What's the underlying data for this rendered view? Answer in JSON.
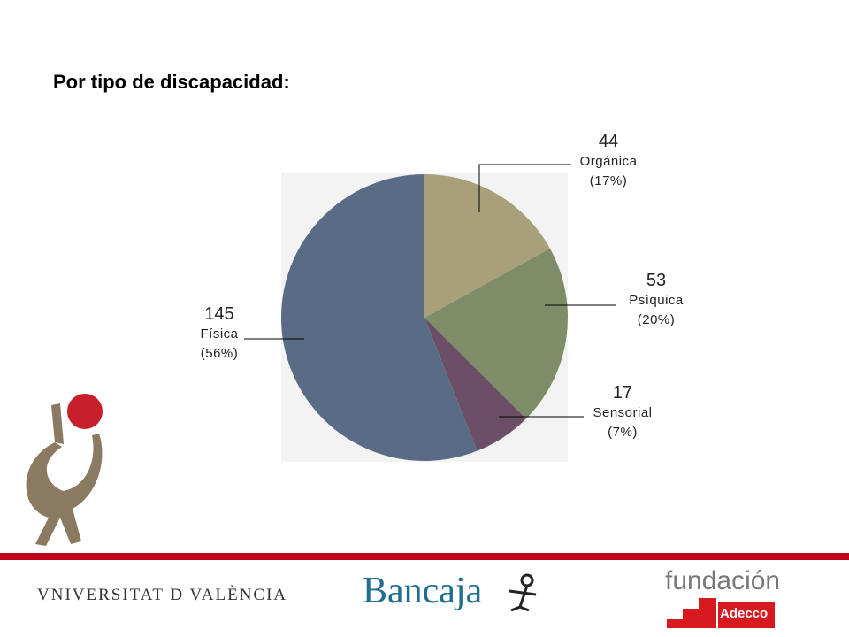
{
  "page": {
    "title": "Por tipo de discapacidad:"
  },
  "chart_data": {
    "type": "pie",
    "title": "",
    "slices": [
      {
        "name": "Orgánica",
        "value": 44,
        "percent_label": "(17%)",
        "color": "#a8a07a"
      },
      {
        "name": "Psíquica",
        "value": 53,
        "percent_label": "(20%)",
        "color": "#7f8c68"
      },
      {
        "name": "Sensorial",
        "value": 17,
        "percent_label": "(7%)",
        "color": "#6b4f66"
      },
      {
        "name": "Física",
        "value": 145,
        "percent_label": "(56%)",
        "color": "#5a6b86"
      }
    ]
  },
  "footer": {
    "logo_uv": "VNIVERSITAT D VALÈNCIA",
    "logo_bancaja": "Bancaja",
    "logo_fundacion": "fundación",
    "logo_adecco": "Adecco",
    "accent_color": "#c0001a"
  }
}
